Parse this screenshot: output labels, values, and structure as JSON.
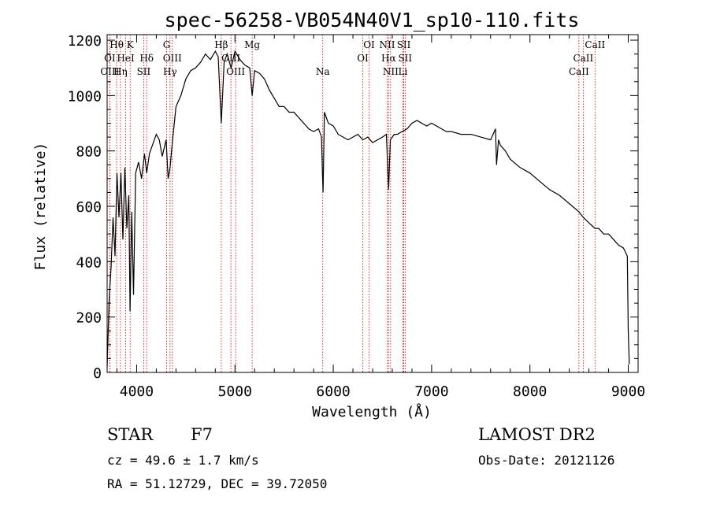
{
  "title": "spec-56258-VB054N40V1_sp10-110.fits",
  "info": {
    "class": "STAR",
    "subclass": "F7",
    "cz": "cz = 49.6 ± 1.7 km/s",
    "radec": "RA =  51.12729, DEC =  39.72050",
    "survey": "LAMOST DR2",
    "obs_date": "Obs-Date: 20121126"
  },
  "chart_data": {
    "type": "line",
    "title": "spec-56258-VB054N40V1_sp10-110.fits",
    "xlabel": "Wavelength (Å)",
    "ylabel": "Flux (relative)",
    "xlim": [
      3700,
      9100
    ],
    "ylim": [
      0,
      1220
    ],
    "xticks": [
      4000,
      5000,
      6000,
      7000,
      8000,
      9000
    ],
    "yticks": [
      0,
      200,
      400,
      600,
      800,
      1000,
      1200
    ],
    "line_color": "#000000",
    "marker_color": "#cc0000",
    "series": [
      {
        "x": [
          3700,
          3720,
          3740,
          3760,
          3780,
          3800,
          3820,
          3840,
          3860,
          3880,
          3900,
          3920,
          3933,
          3950,
          3968,
          3990,
          4020,
          4050,
          4080,
          4102,
          4130,
          4160,
          4200,
          4230,
          4260,
          4300,
          4320,
          4340,
          4360,
          4400,
          4450,
          4500,
          4550,
          4600,
          4650,
          4700,
          4750,
          4800,
          4830,
          4861,
          4890,
          4920,
          4960,
          5000,
          5050,
          5100,
          5150,
          5175,
          5200,
          5250,
          5300,
          5350,
          5400,
          5450,
          5500,
          5550,
          5600,
          5650,
          5700,
          5750,
          5800,
          5850,
          5880,
          5890,
          5896,
          5910,
          5950,
          6000,
          6050,
          6100,
          6150,
          6200,
          6250,
          6300,
          6350,
          6400,
          6450,
          6500,
          6540,
          6563,
          6580,
          6620,
          6650,
          6700,
          6750,
          6800,
          6850,
          6900,
          6950,
          7000,
          7050,
          7100,
          7150,
          7200,
          7300,
          7400,
          7500,
          7600,
          7650,
          7660,
          7680,
          7700,
          7750,
          7800,
          7900,
          8000,
          8100,
          8200,
          8300,
          8400,
          8498,
          8542,
          8600,
          8662,
          8700,
          8750,
          8800,
          8850,
          8900,
          8950,
          8990,
          9000,
          9010
        ],
        "y": [
          20,
          260,
          380,
          560,
          420,
          720,
          560,
          720,
          480,
          740,
          520,
          640,
          220,
          580,
          280,
          720,
          760,
          700,
          790,
          720,
          790,
          820,
          860,
          840,
          780,
          840,
          700,
          740,
          820,
          960,
          1000,
          1060,
          1090,
          1100,
          1120,
          1150,
          1130,
          1160,
          1140,
          900,
          1120,
          1150,
          1100,
          1160,
          1130,
          1110,
          1100,
          1000,
          1090,
          1080,
          1060,
          1020,
          990,
          960,
          960,
          940,
          940,
          920,
          900,
          880,
          870,
          880,
          850,
          720,
          650,
          940,
          900,
          890,
          860,
          850,
          840,
          850,
          860,
          840,
          850,
          830,
          840,
          850,
          860,
          660,
          840,
          860,
          860,
          870,
          880,
          900,
          910,
          900,
          890,
          900,
          890,
          880,
          870,
          870,
          860,
          860,
          850,
          840,
          880,
          750,
          840,
          820,
          800,
          770,
          740,
          720,
          690,
          660,
          640,
          610,
          580,
          560,
          540,
          520,
          520,
          500,
          500,
          480,
          460,
          450,
          420,
          150,
          30
        ]
      }
    ],
    "line_markers": [
      {
        "label": "Hθ",
        "wavelength": 3797,
        "row": 0
      },
      {
        "label": "K",
        "wavelength": 3934,
        "row": 0
      },
      {
        "label": "G",
        "wavelength": 4305,
        "row": 0
      },
      {
        "label": "Hβ",
        "wavelength": 4861,
        "row": 0
      },
      {
        "label": "Mg",
        "wavelength": 5175,
        "row": 0
      },
      {
        "label": "OI",
        "wavelength": 6300,
        "row": 1
      },
      {
        "label": "NII",
        "wavelength": 6548,
        "row": 0
      },
      {
        "label": "SII",
        "wavelength": 6717,
        "row": 0
      },
      {
        "label": "CaII",
        "wavelength": 8662,
        "row": 0
      },
      {
        "label": "OI",
        "wavelength": 3727,
        "row": 1
      },
      {
        "label": "HeI",
        "wavelength": 3889,
        "row": 1
      },
      {
        "label": "Hδ",
        "wavelength": 4102,
        "row": 1
      },
      {
        "label": "OIII",
        "wavelength": 4363,
        "row": 1
      },
      {
        "label": "OIII",
        "wavelength": 4959,
        "row": 1
      },
      {
        "label": "OI",
        "wavelength": 6364,
        "row": 0
      },
      {
        "label": "Hα",
        "wavelength": 6563,
        "row": 1
      },
      {
        "label": "SII",
        "wavelength": 6731,
        "row": 1
      },
      {
        "label": "CaII",
        "wavelength": 8542,
        "row": 1
      },
      {
        "label": "OIII",
        "wavelength": 3727,
        "row": 2
      },
      {
        "label": "Hη",
        "wavelength": 3835,
        "row": 2
      },
      {
        "label": "SII",
        "wavelength": 4072,
        "row": 2
      },
      {
        "label": "Hγ",
        "wavelength": 4340,
        "row": 2
      },
      {
        "label": "OIII",
        "wavelength": 5007,
        "row": 2
      },
      {
        "label": "Na",
        "wavelength": 5893,
        "row": 2
      },
      {
        "label": "NII",
        "wavelength": 6583,
        "row": 2
      },
      {
        "label": "Li",
        "wavelength": 6708,
        "row": 2
      },
      {
        "label": "CaII",
        "wavelength": 8498,
        "row": 2
      }
    ]
  }
}
